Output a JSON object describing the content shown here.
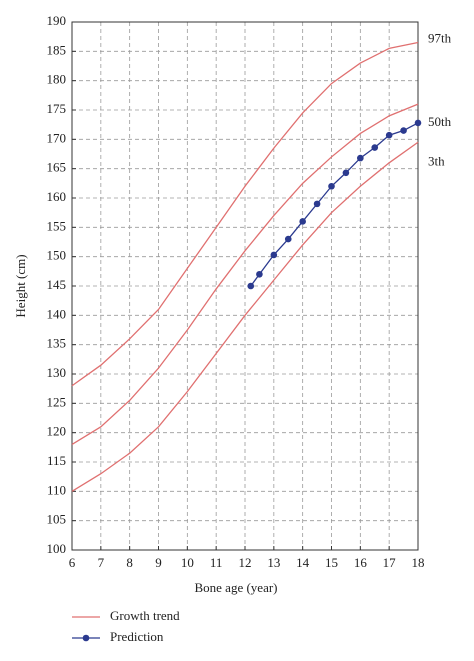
{
  "chart_data": {
    "type": "line",
    "x_label": "Bone age (year)",
    "y_label": "Height (cm)",
    "xlim": [
      6,
      18
    ],
    "ylim": [
      100,
      190
    ],
    "xticks": [
      6,
      7,
      8,
      9,
      10,
      11,
      12,
      13,
      14,
      15,
      16,
      17,
      18
    ],
    "yticks": [
      100,
      105,
      110,
      115,
      120,
      125,
      130,
      135,
      140,
      145,
      150,
      155,
      160,
      165,
      170,
      175,
      180,
      185,
      190
    ],
    "grid": true,
    "growth_trend": {
      "name": "Growth trend",
      "color": "#e07070",
      "x": [
        6,
        7,
        8,
        9,
        10,
        11,
        12,
        13,
        14,
        15,
        16,
        17,
        18
      ],
      "curves": [
        {
          "label": "97th",
          "values": [
            128,
            131.5,
            136,
            141,
            148,
            155,
            162,
            168.5,
            174.5,
            179.5,
            183,
            185.5,
            186.5
          ]
        },
        {
          "label": "50th",
          "values": [
            118,
            121,
            125.5,
            131,
            137.5,
            144.5,
            151,
            157,
            162.5,
            167,
            171,
            174,
            176
          ]
        },
        {
          "label": "3th",
          "values": [
            110,
            113,
            116.5,
            121,
            127,
            133.5,
            140,
            146,
            152,
            157.5,
            162,
            166,
            169.5
          ]
        }
      ]
    },
    "prediction": {
      "name": "Prediction",
      "color": "#2b3a8f",
      "x": [
        12.2,
        12.5,
        13,
        13.5,
        14,
        14.5,
        15,
        15.5,
        16,
        16.5,
        17,
        17.5,
        18
      ],
      "values": [
        145,
        147,
        150.3,
        153,
        156,
        159,
        162,
        164.3,
        166.8,
        168.6,
        170.7,
        171.5,
        172.8
      ]
    }
  }
}
